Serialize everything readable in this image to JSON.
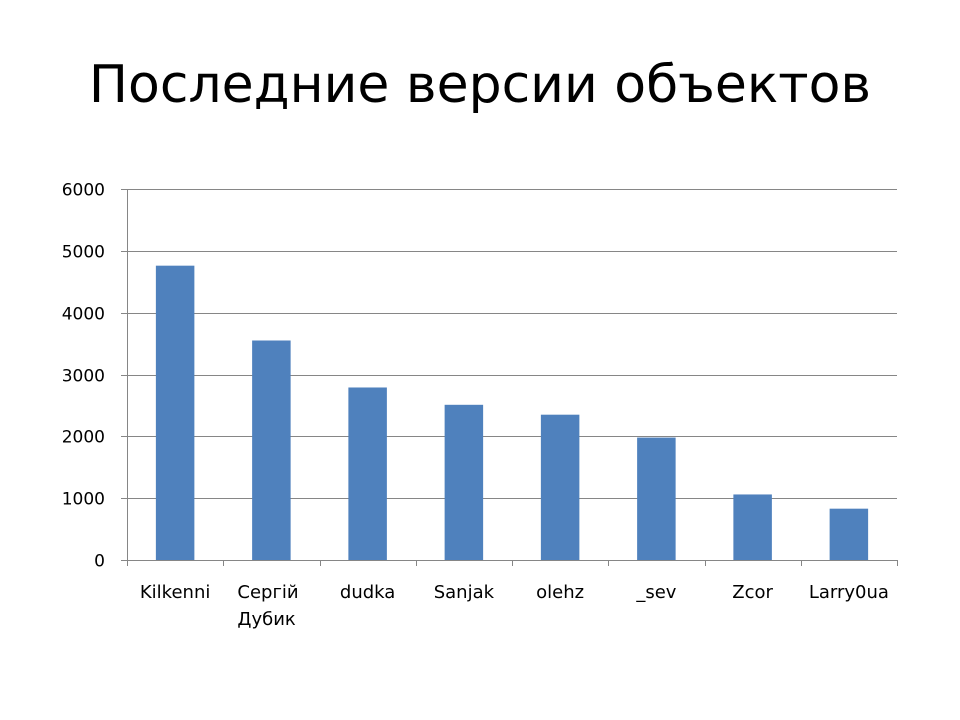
{
  "slide": {
    "title": "Последние версии объектов"
  },
  "chart_data": {
    "type": "bar",
    "title": "Последние версии объектов",
    "categories": [
      "Kilkenni",
      "Сергій Дубик",
      "dudka",
      "Sanjak",
      "olehz",
      "_sev",
      "Zcor",
      "Larry0ua"
    ],
    "values": [
      4760,
      3550,
      2790,
      2510,
      2350,
      1980,
      1060,
      830
    ],
    "ylim": [
      0,
      6000
    ],
    "yticks": [
      0,
      1000,
      2000,
      3000,
      4000,
      5000,
      6000
    ],
    "grid": true,
    "bar_color": "#4F81BD",
    "grid_color": "#868686"
  }
}
